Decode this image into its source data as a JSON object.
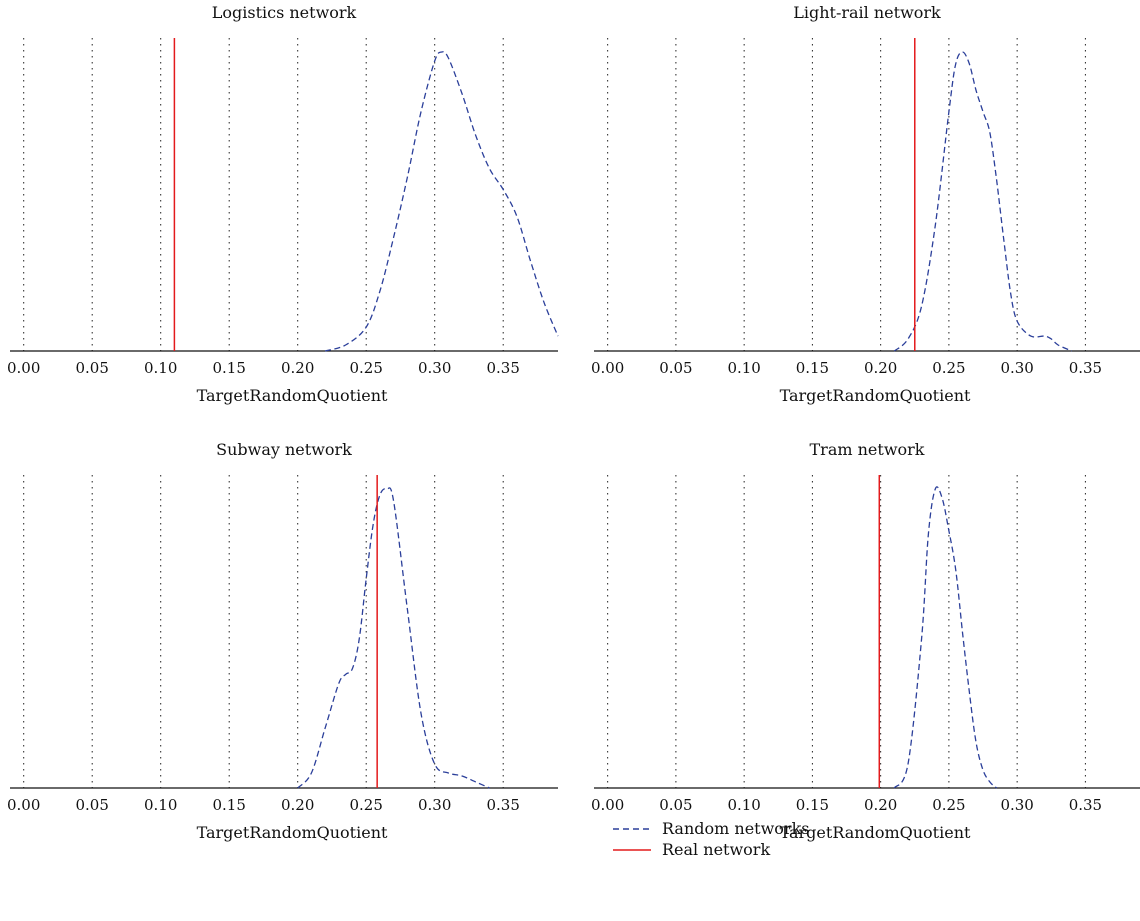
{
  "colors": {
    "random": "#2b3f9a",
    "real": "#e31a1c",
    "axis": "#111111",
    "grid": "#222222"
  },
  "legend": {
    "placement": "bottom-right",
    "items": [
      {
        "label": "Random networks",
        "style": "dashed",
        "color": "#2b3f9a"
      },
      {
        "label": "Real network",
        "style": "solid",
        "color": "#e31a1c"
      }
    ]
  },
  "chart_data": [
    {
      "type": "line",
      "title": "Logistics network",
      "xlabel": "TargetRandomQuotient",
      "ylabel": "",
      "xlim": [
        -0.01,
        0.39
      ],
      "ylim": [
        0,
        1
      ],
      "xticks": [
        "0.00",
        "0.05",
        "0.10",
        "0.15",
        "0.20",
        "0.25",
        "0.30",
        "0.35"
      ],
      "grid": "vertical dotted",
      "real_value": 0.11,
      "series": [
        {
          "x": [
            0.22,
            0.235,
            0.25,
            0.26,
            0.27,
            0.28,
            0.29,
            0.3,
            0.305,
            0.31,
            0.32,
            0.33,
            0.34,
            0.35,
            0.36,
            0.37,
            0.38,
            0.39
          ],
          "y": [
            0.0,
            0.02,
            0.08,
            0.2,
            0.38,
            0.58,
            0.8,
            0.97,
            1.0,
            0.98,
            0.86,
            0.72,
            0.61,
            0.54,
            0.45,
            0.3,
            0.16,
            0.05
          ]
        }
      ]
    },
    {
      "type": "line",
      "title": "Light-rail network",
      "xlabel": "TargetRandomQuotient",
      "ylabel": "",
      "xlim": [
        -0.01,
        0.39
      ],
      "ylim": [
        0,
        1
      ],
      "xticks": [
        "0.00",
        "0.05",
        "0.10",
        "0.15",
        "0.20",
        "0.25",
        "0.30",
        "0.35"
      ],
      "grid": "vertical dotted",
      "real_value": 0.225,
      "series": [
        {
          "x": [
            0.21,
            0.22,
            0.23,
            0.24,
            0.25,
            0.255,
            0.26,
            0.265,
            0.27,
            0.275,
            0.28,
            0.285,
            0.29,
            0.295,
            0.3,
            0.31,
            0.32,
            0.325,
            0.33,
            0.34
          ],
          "y": [
            0.0,
            0.04,
            0.15,
            0.42,
            0.8,
            0.96,
            1.0,
            0.96,
            0.87,
            0.8,
            0.73,
            0.57,
            0.38,
            0.2,
            0.1,
            0.05,
            0.05,
            0.04,
            0.02,
            0.0
          ]
        }
      ]
    },
    {
      "type": "line",
      "title": "Subway network",
      "xlabel": "TargetRandomQuotient",
      "ylabel": "",
      "xlim": [
        -0.01,
        0.39
      ],
      "ylim": [
        0,
        1
      ],
      "xticks": [
        "0.00",
        "0.05",
        "0.10",
        "0.15",
        "0.20",
        "0.25",
        "0.30",
        "0.35"
      ],
      "grid": "vertical dotted",
      "real_value": 0.258,
      "series": [
        {
          "x": [
            0.2,
            0.21,
            0.22,
            0.23,
            0.235,
            0.24,
            0.245,
            0.25,
            0.255,
            0.26,
            0.265,
            0.27,
            0.28,
            0.29,
            0.3,
            0.31,
            0.32,
            0.33,
            0.34
          ],
          "y": [
            0.0,
            0.05,
            0.2,
            0.35,
            0.38,
            0.4,
            0.5,
            0.7,
            0.88,
            0.98,
            1.0,
            0.96,
            0.6,
            0.25,
            0.08,
            0.05,
            0.04,
            0.02,
            0.0
          ]
        }
      ]
    },
    {
      "type": "line",
      "title": "Tram network",
      "xlabel": "TargetRandomQuotient",
      "ylabel": "",
      "xlim": [
        -0.01,
        0.39
      ],
      "ylim": [
        0,
        1
      ],
      "xticks": [
        "0.00",
        "0.05",
        "0.10",
        "0.15",
        "0.20",
        "0.25",
        "0.30",
        "0.35"
      ],
      "grid": "vertical dotted",
      "real_value": 0.199,
      "series": [
        {
          "x": [
            0.21,
            0.22,
            0.23,
            0.235,
            0.24,
            0.245,
            0.25,
            0.255,
            0.26,
            0.265,
            0.27,
            0.275,
            0.28,
            0.285
          ],
          "y": [
            0.0,
            0.08,
            0.5,
            0.85,
            1.0,
            0.97,
            0.86,
            0.73,
            0.52,
            0.32,
            0.15,
            0.06,
            0.02,
            0.0
          ]
        }
      ]
    }
  ]
}
